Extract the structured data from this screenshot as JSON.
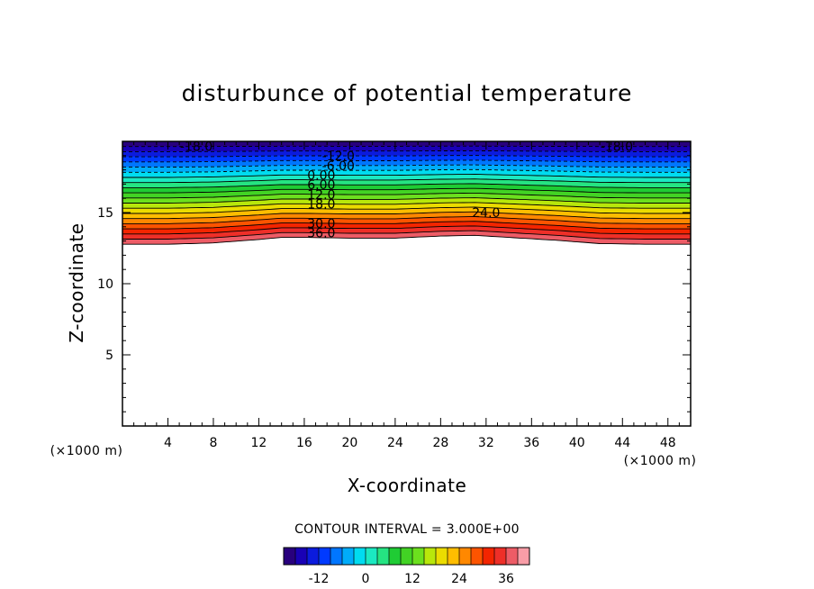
{
  "chart_data": {
    "type": "heatmap",
    "title": "disturbunce of potential temperature",
    "xlabel": "X-coordinate",
    "ylabel": "Z-coordinate",
    "x_unit": "(×1000 m)",
    "z_unit": "(×1000 m)",
    "xlim": [
      0,
      50
    ],
    "zlim": [
      0,
      20
    ],
    "x_ticks": [
      "4",
      "8",
      "12",
      "16",
      "20",
      "24",
      "28",
      "32",
      "36",
      "40",
      "44",
      "48"
    ],
    "z_ticks": [
      "5",
      "10",
      "15"
    ],
    "contour_interval_text": "CONTOUR INTERVAL = 3.000E+00",
    "contour_interval": 3,
    "colorbar": {
      "range": [
        -21,
        42
      ],
      "tick_labels": [
        "-12",
        "0",
        "12",
        "24",
        "36"
      ]
    },
    "profile": {
      "z_top": 20,
      "value_at_top": -21,
      "gradient_per_km": 8.3
    },
    "base_boundary": {
      "x": [
        0,
        4,
        8,
        12,
        14,
        16,
        20,
        24,
        28,
        31,
        34,
        38,
        42,
        46,
        50
      ],
      "z": [
        12.5,
        12.5,
        12.6,
        12.85,
        13.0,
        13.0,
        12.95,
        12.95,
        13.1,
        13.15,
        13.0,
        12.8,
        12.55,
        12.5,
        12.5
      ]
    },
    "contour_labels": [
      {
        "text": "-18.0",
        "x": 6.5,
        "level": -18
      },
      {
        "text": "-18.0",
        "x": 43.5,
        "level": -18
      },
      {
        "text": "-12.0",
        "x": 19.0,
        "level": -12
      },
      {
        "text": "-6.00",
        "x": 19.0,
        "level": -6
      },
      {
        "text": "0.00",
        "x": 17.5,
        "level": 0
      },
      {
        "text": "6.00",
        "x": 17.5,
        "level": 6
      },
      {
        "text": "12.0",
        "x": 17.5,
        "level": 12
      },
      {
        "text": "18.0",
        "x": 17.5,
        "level": 18
      },
      {
        "text": "24.0",
        "x": 32.0,
        "level": 24
      },
      {
        "text": "30.0",
        "x": 17.5,
        "level": 30
      },
      {
        "text": "36.0",
        "x": 17.5,
        "level": 36
      }
    ]
  }
}
